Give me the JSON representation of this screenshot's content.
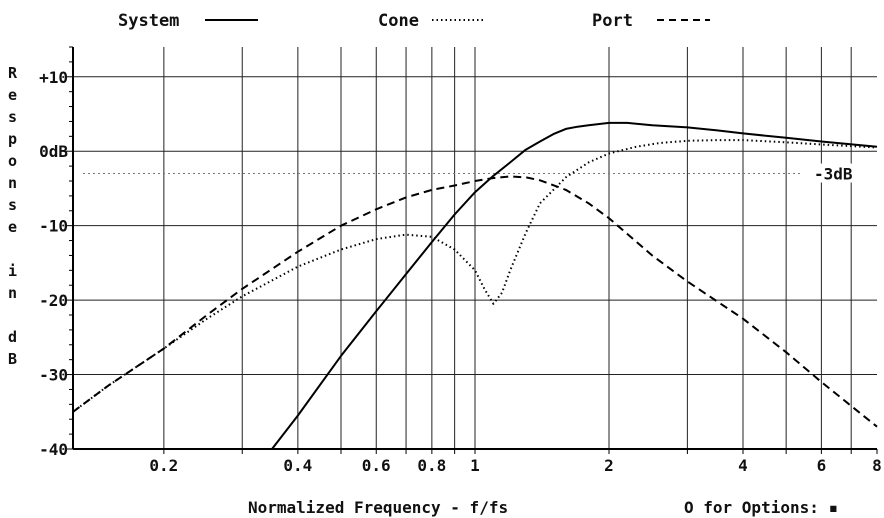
{
  "chart_data": {
    "type": "line",
    "xscale": "log",
    "xlim": [
      0.125,
      8
    ],
    "ylim": [
      -40,
      14
    ],
    "grid": true,
    "legend_position": "top",
    "xlabel": "Normalized Frequency - f/fs",
    "ylabel": "Response in dB",
    "footer": "O for Options: ▪",
    "x_tick_values": [
      0.2,
      0.4,
      0.6,
      0.8,
      1,
      2,
      4,
      6,
      8
    ],
    "x_tick_labels": [
      "0.2",
      "0.4",
      "0.6",
      "0.8",
      "1",
      "2",
      "4",
      "6",
      "8"
    ],
    "y_tick_values": [
      10,
      0,
      -10,
      -20,
      -30,
      -40
    ],
    "y_tick_labels": [
      "+10",
      "0dB",
      "-10",
      "-20",
      "-30",
      "-40"
    ],
    "minus3_value": -3,
    "minus3_label": "-3dB",
    "series": [
      {
        "name": "System",
        "style": "solid",
        "color": "#000000",
        "x": [
          0.35,
          0.4,
          0.5,
          0.6,
          0.7,
          0.8,
          0.9,
          1.0,
          1.1,
          1.2,
          1.3,
          1.4,
          1.5,
          1.6,
          1.7,
          1.8,
          2.0,
          2.2,
          2.5,
          3.0,
          3.5,
          4.0,
          5.0,
          6.0,
          8.0
        ],
        "values": [
          -40,
          -35.5,
          -27.5,
          -21.5,
          -16.5,
          -12.2,
          -8.5,
          -5.5,
          -3.3,
          -1.5,
          0.2,
          1.3,
          2.3,
          3.0,
          3.3,
          3.5,
          3.8,
          3.8,
          3.5,
          3.2,
          2.8,
          2.4,
          1.8,
          1.3,
          0.6
        ]
      },
      {
        "name": "Cone",
        "style": "dotted",
        "color": "#000000",
        "x": [
          0.125,
          0.15,
          0.2,
          0.25,
          0.3,
          0.4,
          0.5,
          0.6,
          0.7,
          0.8,
          0.9,
          1.0,
          1.05,
          1.1,
          1.15,
          1.2,
          1.3,
          1.4,
          1.6,
          1.8,
          2.0,
          2.3,
          2.6,
          3.0,
          3.5,
          4.0,
          5.0,
          6.0,
          8.0
        ],
        "values": [
          -35,
          -31.5,
          -26.5,
          -22.5,
          -19.5,
          -15.5,
          -13.2,
          -11.8,
          -11.2,
          -11.5,
          -13.2,
          -16,
          -18.5,
          -20.5,
          -19,
          -16,
          -11,
          -7,
          -3.5,
          -1.5,
          -0.3,
          0.6,
          1.1,
          1.4,
          1.5,
          1.5,
          1.2,
          0.9,
          0.5
        ]
      },
      {
        "name": "Port",
        "style": "dashed",
        "color": "#000000",
        "x": [
          0.125,
          0.15,
          0.2,
          0.25,
          0.3,
          0.4,
          0.5,
          0.6,
          0.7,
          0.8,
          0.9,
          1.0,
          1.1,
          1.2,
          1.3,
          1.4,
          1.6,
          1.8,
          2.0,
          2.5,
          3.0,
          4.0,
          5.0,
          6.0,
          8.0
        ],
        "values": [
          -35,
          -31.5,
          -26.5,
          -22,
          -18.5,
          -13.5,
          -10,
          -7.8,
          -6.2,
          -5.2,
          -4.6,
          -4.0,
          -3.6,
          -3.4,
          -3.5,
          -3.9,
          -5.2,
          -7.0,
          -9.0,
          -14.0,
          -17.5,
          -22.5,
          -27.0,
          -31.0,
          -37.0
        ]
      }
    ]
  }
}
